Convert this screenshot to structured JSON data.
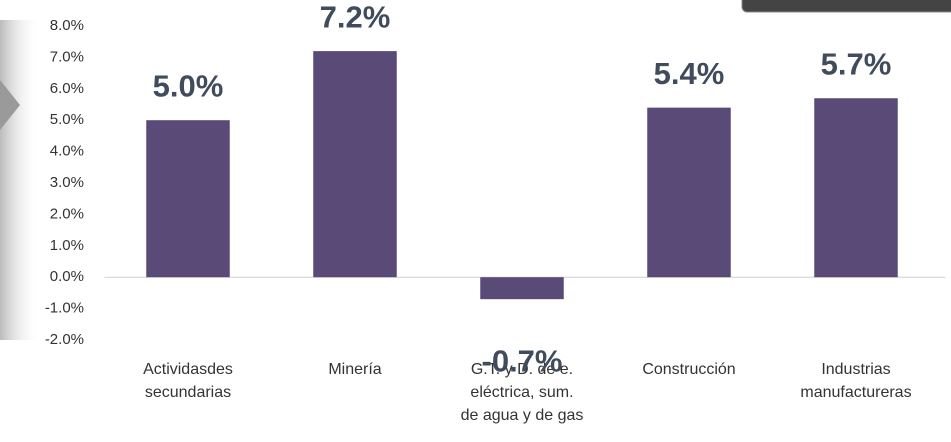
{
  "chart_data": {
    "type": "bar",
    "categories": [
      [
        "Actividasdes",
        "secundarias"
      ],
      [
        "Minería"
      ],
      [
        "G.T. y D. de e.",
        "eléctrica, sum.",
        "de  agua y de gas"
      ],
      [
        "Construcción"
      ],
      [
        "Industrias",
        "manufactureras"
      ]
    ],
    "values": [
      5.0,
      7.2,
      -0.7,
      5.4,
      5.7
    ],
    "value_labels": [
      "5.0%",
      "7.2%",
      "-0.7%",
      "5.4%",
      "5.7%"
    ],
    "color": "#594a77",
    "ylim": [
      -2,
      8
    ],
    "yticks": [
      {
        "value": 8,
        "label": "8.0%"
      },
      {
        "value": 7,
        "label": "7.0%"
      },
      {
        "value": 6,
        "label": "6.0%"
      },
      {
        "value": 5,
        "label": "5.0%"
      },
      {
        "value": 4,
        "label": "4.0%"
      },
      {
        "value": 3,
        "label": "3.0%"
      },
      {
        "value": 2,
        "label": "2.0%"
      },
      {
        "value": 1,
        "label": "1.0%"
      },
      {
        "value": 0,
        "label": "0.0%"
      },
      {
        "value": -1,
        "label": "-1.0%"
      },
      {
        "value": -2,
        "label": "-2.0%"
      }
    ],
    "grid": false
  }
}
